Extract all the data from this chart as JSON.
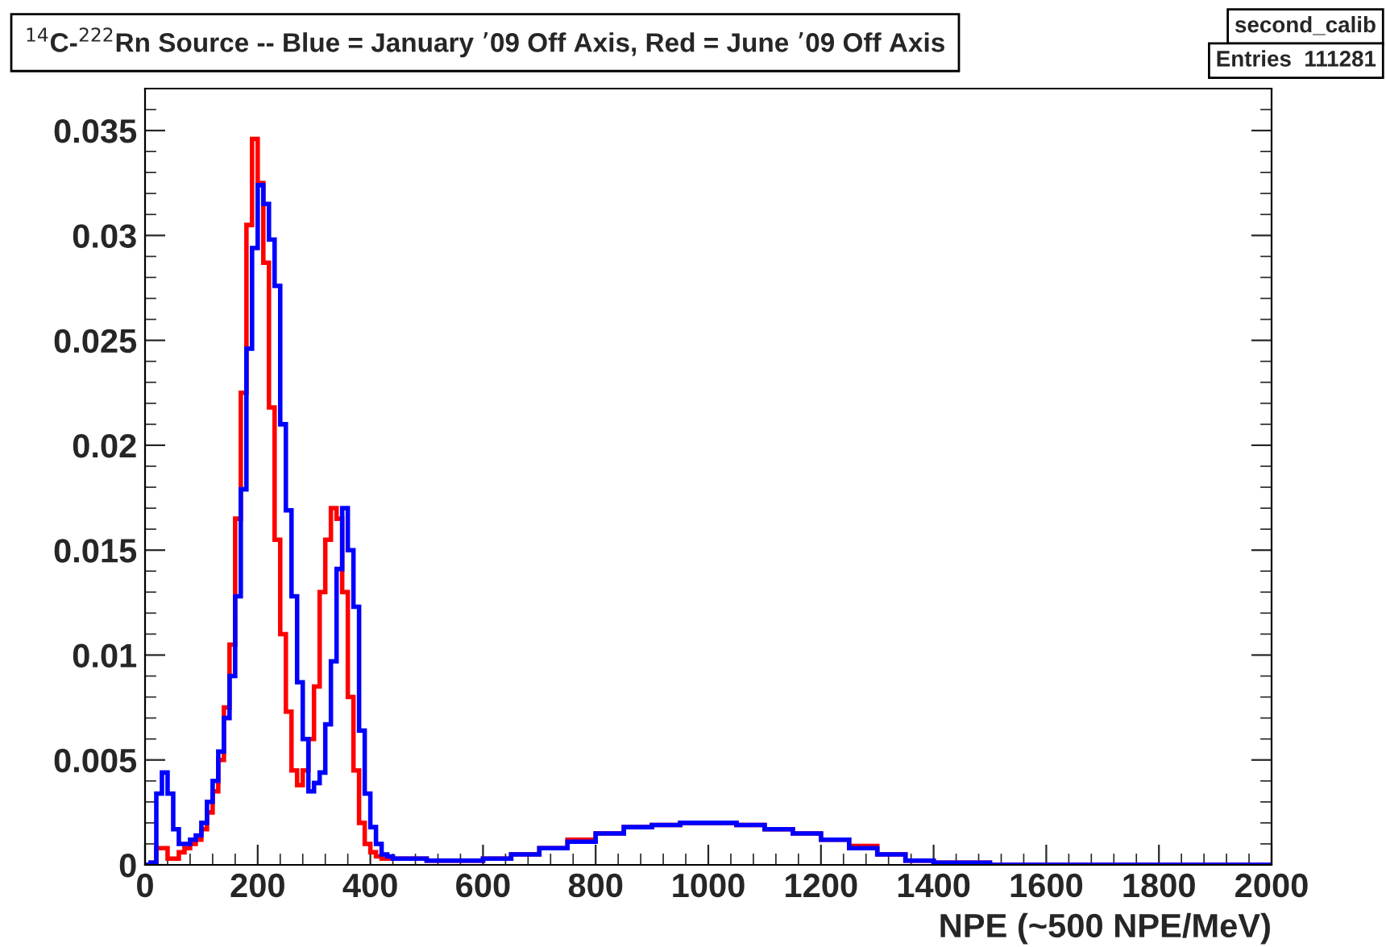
{
  "chart_data": {
    "type": "histogram",
    "title": "$^{14}$C-$^{222}$Rn Source -- Blue = January ’09 Off Axis, Red = June ’09 Off Axis",
    "xlabel": "NPE (~500 NPE/MeV)",
    "annotations": [
      "second_calib",
      "Entries  111281"
    ],
    "bins": [
      0,
      10,
      20,
      30,
      40,
      50,
      60,
      70,
      80,
      90,
      100,
      110,
      120,
      130,
      140,
      150,
      160,
      170,
      180,
      190,
      200,
      210,
      220,
      230,
      240,
      250,
      260,
      270,
      280,
      290,
      300,
      310,
      320,
      330,
      340,
      350,
      360,
      370,
      380,
      390,
      400,
      410,
      420,
      430,
      440,
      450,
      500,
      550,
      600,
      650,
      700,
      750,
      800,
      850,
      900,
      950,
      1000,
      1050,
      1100,
      1150,
      1200,
      1250,
      1300,
      1350,
      1400,
      1500,
      1600,
      1700,
      1800,
      1900,
      2000
    ],
    "series": [
      {
        "color": "#ff0000",
        "values": [
          0,
          0.0001,
          0.0008,
          0.0008,
          0.0003,
          0.0003,
          0.0006,
          0.0008,
          0.001,
          0.0012,
          0.0017,
          0.0025,
          0.0035,
          0.005,
          0.0075,
          0.0105,
          0.0165,
          0.0225,
          0.0305,
          0.0346,
          0.0325,
          0.0287,
          0.0218,
          0.0155,
          0.011,
          0.0073,
          0.0045,
          0.0038,
          0.0045,
          0.006,
          0.0085,
          0.013,
          0.0155,
          0.017,
          0.0165,
          0.013,
          0.008,
          0.0045,
          0.002,
          0.001,
          0.0006,
          0.0004,
          0.0003,
          0.0003,
          0.0003,
          0.0003,
          0.0002,
          0.0002,
          0.0003,
          0.0005,
          0.0008,
          0.0012,
          0.0015,
          0.0018,
          0.0019,
          0.002,
          0.002,
          0.0019,
          0.0017,
          0.0015,
          0.0012,
          0.0009,
          0.0005,
          0.0002,
          0.0001,
          0,
          0,
          0,
          0,
          0
        ]
      },
      {
        "color": "#0000ff",
        "values": [
          0,
          0.0001,
          0.0034,
          0.0044,
          0.0034,
          0.0017,
          0.001,
          0.001,
          0.0012,
          0.0014,
          0.002,
          0.003,
          0.004,
          0.0054,
          0.007,
          0.009,
          0.0128,
          0.0179,
          0.0246,
          0.0294,
          0.0324,
          0.0315,
          0.0298,
          0.0276,
          0.021,
          0.0169,
          0.0128,
          0.0087,
          0.006,
          0.0035,
          0.0039,
          0.0044,
          0.0067,
          0.0097,
          0.0141,
          0.017,
          0.015,
          0.0123,
          0.0064,
          0.0034,
          0.0018,
          0.001,
          0.0005,
          0.0004,
          0.0003,
          0.0003,
          0.0002,
          0.0002,
          0.0003,
          0.0005,
          0.0008,
          0.0011,
          0.0015,
          0.0018,
          0.0019,
          0.002,
          0.002,
          0.0019,
          0.0017,
          0.0015,
          0.0012,
          0.0008,
          0.0005,
          0.0002,
          0.0001,
          0,
          0,
          0,
          0,
          0
        ]
      }
    ],
    "xlim": [
      0,
      2000
    ],
    "xticks": [
      0,
      200,
      400,
      600,
      800,
      1000,
      1200,
      1400,
      1600,
      1800,
      2000
    ],
    "ylim": [
      0,
      0.037
    ],
    "yticks": [
      0,
      0.005,
      0.01,
      0.015,
      0.02,
      0.025,
      0.03,
      0.035
    ],
    "grid": false
  }
}
